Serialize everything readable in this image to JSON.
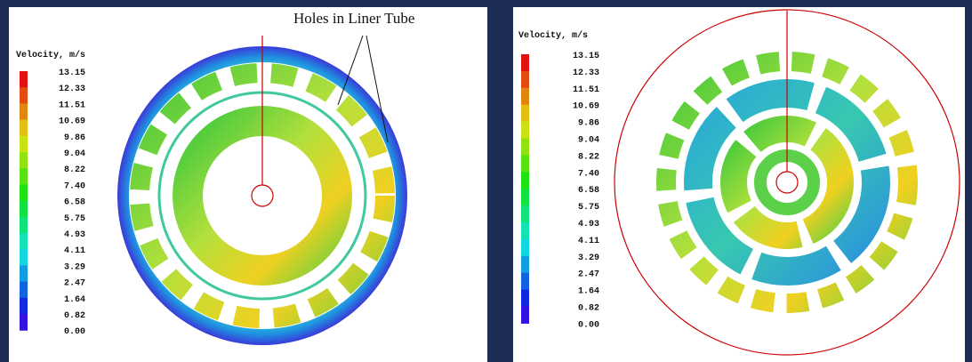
{
  "left_panel": {
    "annotation": "Holes in Liner Tube",
    "legend": {
      "title": "Velocity, m/s",
      "labels": [
        "13.15",
        "12.33",
        "11.51",
        "10.69",
        "9.86",
        "9.04",
        "8.22",
        "7.40",
        "6.58",
        "5.75",
        "4.93",
        "4.11",
        "3.29",
        "2.47",
        "1.64",
        "0.82",
        "0.00"
      ]
    }
  },
  "right_panel": {
    "legend": {
      "title": "Velocity, m/s",
      "labels": [
        "13.15",
        "12.33",
        "11.51",
        "10.69",
        "9.86",
        "9.04",
        "8.22",
        "7.40",
        "6.58",
        "5.75",
        "4.93",
        "4.11",
        "3.29",
        "2.47",
        "1.64",
        "0.82",
        "0.00"
      ]
    }
  }
}
